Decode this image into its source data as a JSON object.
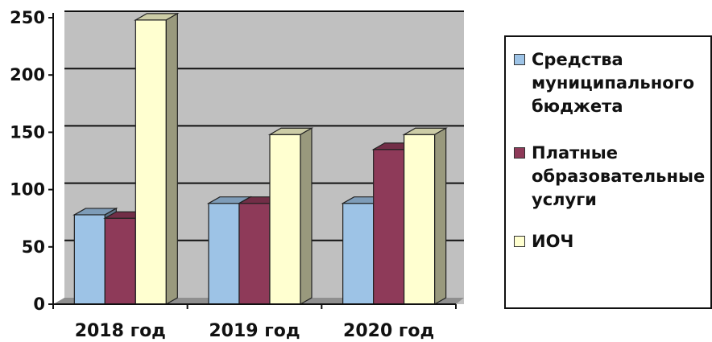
{
  "chart_data": {
    "type": "bar",
    "categories": [
      "2018 год",
      "2019 год",
      "2020 год"
    ],
    "series": [
      {
        "name": "Средства муниципального бюджета",
        "legend_lines": [
          "Средства",
          "муниципального",
          "бюджета"
        ],
        "values": [
          78,
          88,
          88
        ],
        "color": "#9DC3E6"
      },
      {
        "name": "Платные образовательные услуги",
        "legend_lines": [
          "Платные",
          "образовательные",
          "услуги"
        ],
        "values": [
          75,
          88,
          135
        ],
        "color": "#8E3A59"
      },
      {
        "name": "ИОЧ",
        "legend_lines": [
          "ИОЧ"
        ],
        "values": [
          248,
          148,
          148
        ],
        "color": "#FFFFD0"
      }
    ],
    "ylim": [
      0,
      250
    ],
    "yticks": [
      0,
      50,
      100,
      150,
      200,
      250
    ],
    "grid": true,
    "legend_position": "right",
    "title": "",
    "xlabel": "",
    "ylabel": "",
    "colors": {
      "plot_wall": "#C0C0C0",
      "gridline": "#111111",
      "axis": "#111111"
    }
  }
}
